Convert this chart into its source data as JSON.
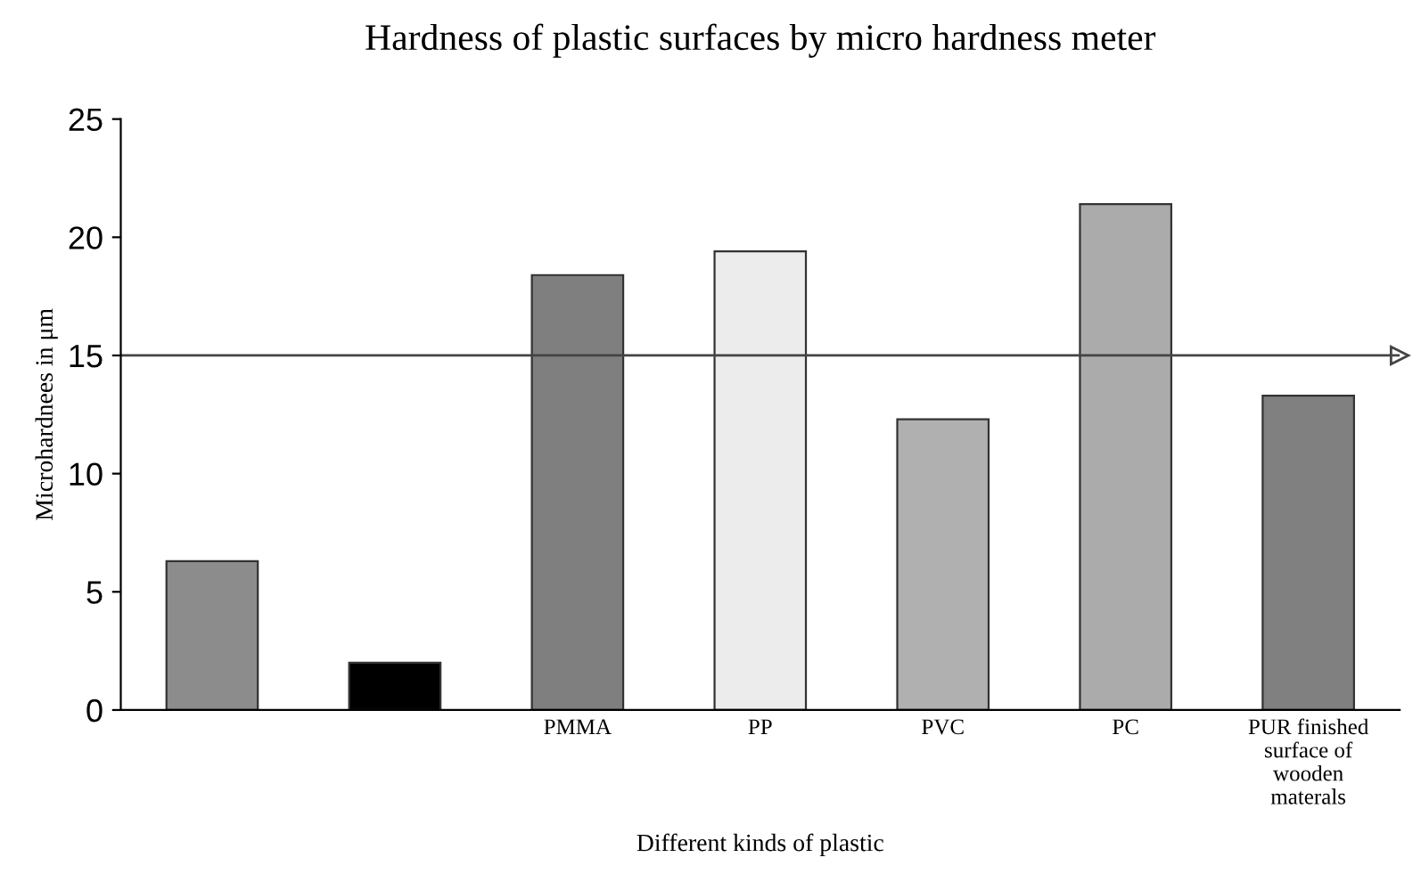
{
  "chart_data": {
    "type": "bar",
    "title": "Hardness of plastic surfaces by micro hardness meter",
    "xlabel": "Different kinds of plastic",
    "ylabel": "Microhardnees in μm",
    "categories": [
      null,
      null,
      "PMMA",
      "PP",
      "PVC",
      "PC",
      "PUR finished\nsurface of\nwooden\nmaterals"
    ],
    "values": [
      6.3,
      2,
      18.4,
      19.4,
      12.3,
      21.4,
      13.3
    ],
    "colors": [
      "#8c8c8c",
      "#000000",
      "#7f7f7f",
      "#ececec",
      "#b0b0b0",
      "#ababab",
      "#808080"
    ],
    "ylim": [
      0,
      25
    ],
    "yticks": [
      0,
      5,
      10,
      15,
      20,
      25
    ],
    "grid": false,
    "legend": false,
    "ref_lines": [
      {
        "axis": "y",
        "value": 15,
        "color": "#444444"
      }
    ]
  }
}
